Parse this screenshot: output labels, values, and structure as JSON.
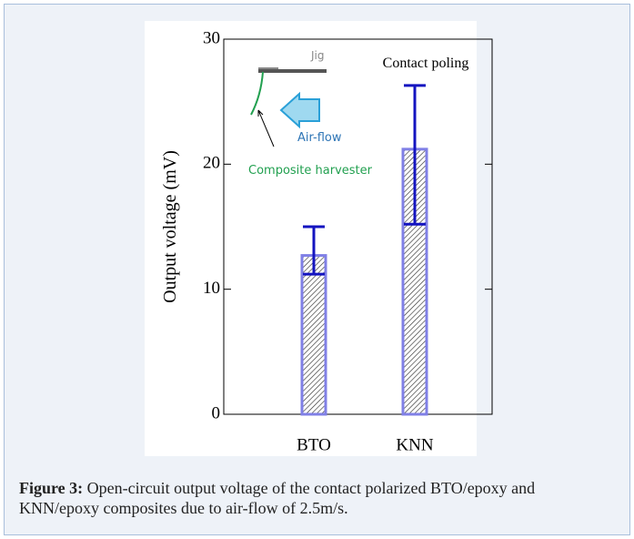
{
  "chart_data": {
    "type": "bar",
    "ylabel": "Output voltage (mV)",
    "categories": [
      "BTO",
      "KNN"
    ],
    "values": [
      12.7,
      21.2
    ],
    "error_minus": [
      1.5,
      6.0
    ],
    "error_plus": [
      2.3,
      5.1
    ],
    "color": "#8080e6",
    "error_color": "#1414c0",
    "ylim": [
      0,
      30
    ],
    "yticks": [
      0,
      10,
      20,
      30
    ],
    "annotations": {
      "jig": "Jig",
      "poling": "Contact poling",
      "airflow": "Air-flow",
      "harvester": "Composite harvester"
    }
  },
  "caption": {
    "label": "Figure 3:",
    "text": "Open-circuit output voltage of the contact polarized BTO/epoxy and KNN/epoxy composites due to air-flow of 2.5m/s."
  }
}
